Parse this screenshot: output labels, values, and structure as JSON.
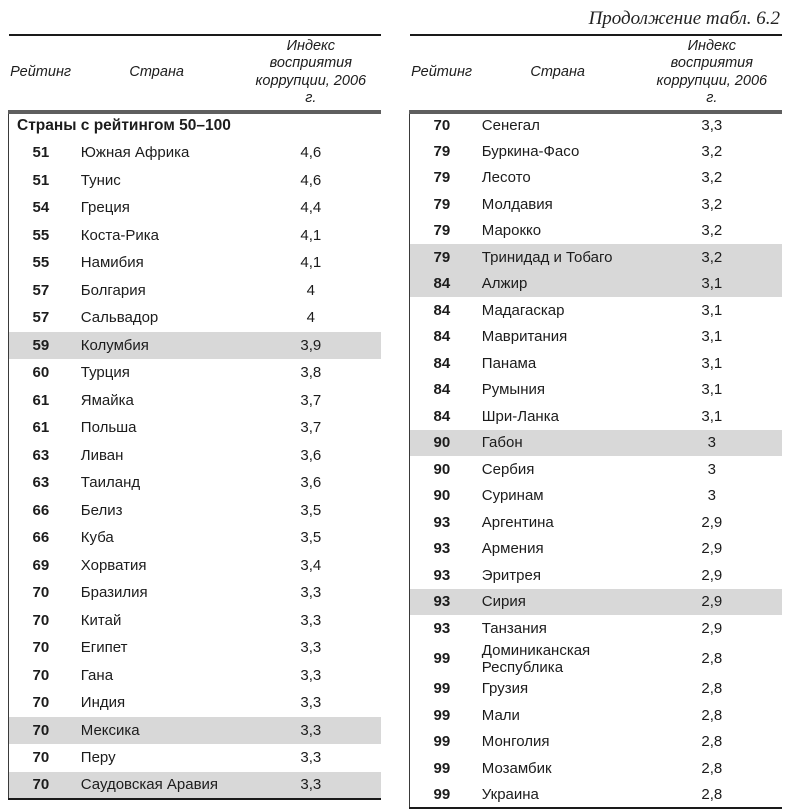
{
  "title": "Продолжение табл. 6.2",
  "tables": [
    {
      "headers": {
        "rating": "Рейтинг",
        "country": "Страна",
        "index": "Индекс восприятия коррупции, 2006 г."
      },
      "section_header": "Страны с рейтингом 50–100",
      "rows": [
        {
          "rating": "51",
          "country": "Южная Африка",
          "index": "4,6",
          "highlighted": false
        },
        {
          "rating": "51",
          "country": "Тунис",
          "index": "4,6",
          "highlighted": false
        },
        {
          "rating": "54",
          "country": "Греция",
          "index": "4,4",
          "highlighted": false
        },
        {
          "rating": "55",
          "country": "Коста-Рика",
          "index": "4,1",
          "highlighted": false
        },
        {
          "rating": "55",
          "country": "Намибия",
          "index": "4,1",
          "highlighted": false
        },
        {
          "rating": "57",
          "country": "Болгария",
          "index": "4",
          "highlighted": false
        },
        {
          "rating": "57",
          "country": "Сальвадор",
          "index": "4",
          "highlighted": false
        },
        {
          "rating": "59",
          "country": "Колумбия",
          "index": "3,9",
          "highlighted": true
        },
        {
          "rating": "60",
          "country": "Турция",
          "index": "3,8",
          "highlighted": false
        },
        {
          "rating": "61",
          "country": "Ямайка",
          "index": "3,7",
          "highlighted": false
        },
        {
          "rating": "61",
          "country": "Польша",
          "index": "3,7",
          "highlighted": false
        },
        {
          "rating": "63",
          "country": "Ливан",
          "index": "3,6",
          "highlighted": false
        },
        {
          "rating": "63",
          "country": "Таиланд",
          "index": "3,6",
          "highlighted": false
        },
        {
          "rating": "66",
          "country": "Белиз",
          "index": "3,5",
          "highlighted": false
        },
        {
          "rating": "66",
          "country": "Куба",
          "index": "3,5",
          "highlighted": false
        },
        {
          "rating": "69",
          "country": "Хорватия",
          "index": "3,4",
          "highlighted": false
        },
        {
          "rating": "70",
          "country": "Бразилия",
          "index": "3,3",
          "highlighted": false
        },
        {
          "rating": "70",
          "country": "Китай",
          "index": "3,3",
          "highlighted": false
        },
        {
          "rating": "70",
          "country": "Египет",
          "index": "3,3",
          "highlighted": false
        },
        {
          "rating": "70",
          "country": "Гана",
          "index": "3,3",
          "highlighted": false
        },
        {
          "rating": "70",
          "country": "Индия",
          "index": "3,3",
          "highlighted": false
        },
        {
          "rating": "70",
          "country": "Мексика",
          "index": "3,3",
          "highlighted": true
        },
        {
          "rating": "70",
          "country": "Перу",
          "index": "3,3",
          "highlighted": false
        },
        {
          "rating": "70",
          "country": "Саудовская Аравия",
          "index": "3,3",
          "highlighted": true
        }
      ]
    },
    {
      "headers": {
        "rating": "Рейтинг",
        "country": "Страна",
        "index": "Индекс восприятия коррупции, 2006 г."
      },
      "section_header": null,
      "rows": [
        {
          "rating": "70",
          "country": "Сенегал",
          "index": "3,3",
          "highlighted": false
        },
        {
          "rating": "79",
          "country": "Буркина-Фасо",
          "index": "3,2",
          "highlighted": false
        },
        {
          "rating": "79",
          "country": "Лесото",
          "index": "3,2",
          "highlighted": false
        },
        {
          "rating": "79",
          "country": "Молдавия",
          "index": "3,2",
          "highlighted": false
        },
        {
          "rating": "79",
          "country": "Марокко",
          "index": "3,2",
          "highlighted": false
        },
        {
          "rating": "79",
          "country": "Тринидад и Тобаго",
          "index": "3,2",
          "highlighted": true
        },
        {
          "rating": "84",
          "country": "Алжир",
          "index": "3,1",
          "highlighted": true
        },
        {
          "rating": "84",
          "country": "Мадагаскар",
          "index": "3,1",
          "highlighted": false
        },
        {
          "rating": "84",
          "country": "Мавритания",
          "index": "3,1",
          "highlighted": false
        },
        {
          "rating": "84",
          "country": "Панама",
          "index": "3,1",
          "highlighted": false
        },
        {
          "rating": "84",
          "country": "Румыния",
          "index": "3,1",
          "highlighted": false
        },
        {
          "rating": "84",
          "country": "Шри-Ланка",
          "index": "3,1",
          "highlighted": false
        },
        {
          "rating": "90",
          "country": "Габон",
          "index": "3",
          "highlighted": true
        },
        {
          "rating": "90",
          "country": "Сербия",
          "index": "3",
          "highlighted": false
        },
        {
          "rating": "90",
          "country": "Суринам",
          "index": "3",
          "highlighted": false
        },
        {
          "rating": "93",
          "country": "Аргентина",
          "index": "2,9",
          "highlighted": false
        },
        {
          "rating": "93",
          "country": "Армения",
          "index": "2,9",
          "highlighted": false
        },
        {
          "rating": "93",
          "country": "Эритрея",
          "index": "2,9",
          "highlighted": false
        },
        {
          "rating": "93",
          "country": "Сирия",
          "index": "2,9",
          "highlighted": true
        },
        {
          "rating": "93",
          "country": "Танзания",
          "index": "2,9",
          "highlighted": false
        },
        {
          "rating": "99",
          "country": "Доминиканская Республика",
          "index": "2,8",
          "highlighted": false
        },
        {
          "rating": "99",
          "country": "Грузия",
          "index": "2,8",
          "highlighted": false
        },
        {
          "rating": "99",
          "country": "Мали",
          "index": "2,8",
          "highlighted": false
        },
        {
          "rating": "99",
          "country": "Монголия",
          "index": "2,8",
          "highlighted": false
        },
        {
          "rating": "99",
          "country": "Мозамбик",
          "index": "2,8",
          "highlighted": false
        },
        {
          "rating": "99",
          "country": "Украина",
          "index": "2,8",
          "highlighted": false
        }
      ]
    }
  ],
  "colors": {
    "highlight_row": "#d8d8d8",
    "header_rule": "#5f5f5f",
    "text": "#1c1c1c"
  }
}
